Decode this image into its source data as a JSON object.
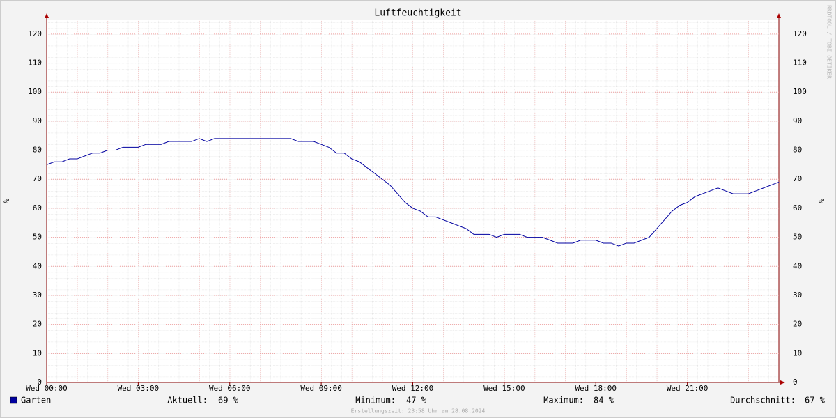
{
  "chart_data": {
    "type": "line",
    "title": "Luftfeuchtigkeit",
    "ylabel": "%",
    "y2label": "%",
    "x": [
      0,
      0.25,
      0.5,
      0.75,
      1,
      1.25,
      1.5,
      1.75,
      2,
      2.25,
      2.5,
      2.75,
      3,
      3.25,
      3.5,
      3.75,
      4,
      4.25,
      4.5,
      4.75,
      5,
      5.25,
      5.5,
      5.75,
      6,
      6.25,
      6.5,
      6.75,
      7,
      7.25,
      7.5,
      7.75,
      8,
      8.25,
      8.5,
      8.75,
      9,
      9.25,
      9.5,
      9.75,
      10,
      10.25,
      10.5,
      10.75,
      11,
      11.25,
      11.5,
      11.75,
      12,
      12.25,
      12.5,
      12.75,
      13,
      13.25,
      13.5,
      13.75,
      14,
      14.25,
      14.5,
      14.75,
      15,
      15.25,
      15.5,
      15.75,
      16,
      16.25,
      16.5,
      16.75,
      17,
      17.25,
      17.5,
      17.75,
      18,
      18.25,
      18.5,
      18.75,
      19,
      19.25,
      19.5,
      19.75,
      20,
      20.25,
      20.5,
      20.75,
      21,
      21.25,
      21.5,
      21.75,
      22,
      22.25,
      22.5,
      22.75,
      23,
      23.25,
      23.5,
      23.75,
      24
    ],
    "series": [
      {
        "name": "Garten",
        "color": "#0000a0",
        "values": [
          75,
          76,
          76,
          77,
          77,
          78,
          79,
          79,
          80,
          80,
          81,
          81,
          81,
          82,
          82,
          82,
          83,
          83,
          83,
          83,
          84,
          83,
          84,
          84,
          84,
          84,
          84,
          84,
          84,
          84,
          84,
          84,
          84,
          83,
          83,
          83,
          82,
          81,
          79,
          79,
          77,
          76,
          74,
          72,
          70,
          68,
          65,
          62,
          60,
          59,
          57,
          57,
          56,
          55,
          54,
          53,
          51,
          51,
          51,
          50,
          51,
          51,
          51,
          50,
          50,
          50,
          49,
          48,
          48,
          48,
          49,
          49,
          49,
          48,
          48,
          47,
          48,
          48,
          49,
          50,
          53,
          56,
          59,
          61,
          62,
          64,
          65,
          66,
          67,
          66,
          65,
          65,
          65,
          66,
          67,
          68,
          69
        ]
      }
    ],
    "xlim": [
      0,
      24
    ],
    "xticks": [
      {
        "value": 0,
        "label": "Wed 00:00"
      },
      {
        "value": 3,
        "label": "Wed 03:00"
      },
      {
        "value": 6,
        "label": "Wed 06:00"
      },
      {
        "value": 9,
        "label": "Wed 09:00"
      },
      {
        "value": 12,
        "label": "Wed 12:00"
      },
      {
        "value": 15,
        "label": "Wed 15:00"
      },
      {
        "value": 18,
        "label": "Wed 18:00"
      },
      {
        "value": 21,
        "label": "Wed 21:00"
      }
    ],
    "ylim": [
      0,
      125
    ],
    "yticks": [
      0,
      10,
      20,
      30,
      40,
      50,
      60,
      70,
      80,
      90,
      100,
      110,
      120
    ],
    "y2lim": [
      0,
      125
    ],
    "y2ticks": [
      0,
      10,
      20,
      30,
      40,
      50,
      60,
      70,
      80,
      90,
      100,
      110,
      120
    ],
    "grid": true,
    "stats": [
      {
        "label": "Aktuell:",
        "value": "69 %"
      },
      {
        "label": "Minimum:",
        "value": "47 %"
      },
      {
        "label": "Maximum:",
        "value": "84 %"
      },
      {
        "label": "Durchschnitt:",
        "value": "67 %"
      }
    ],
    "footer": "Erstellungszeit: 23:58 Uhr am 28.08.2024",
    "watermark": "RRDTOOL / TOBI OETIKER"
  }
}
